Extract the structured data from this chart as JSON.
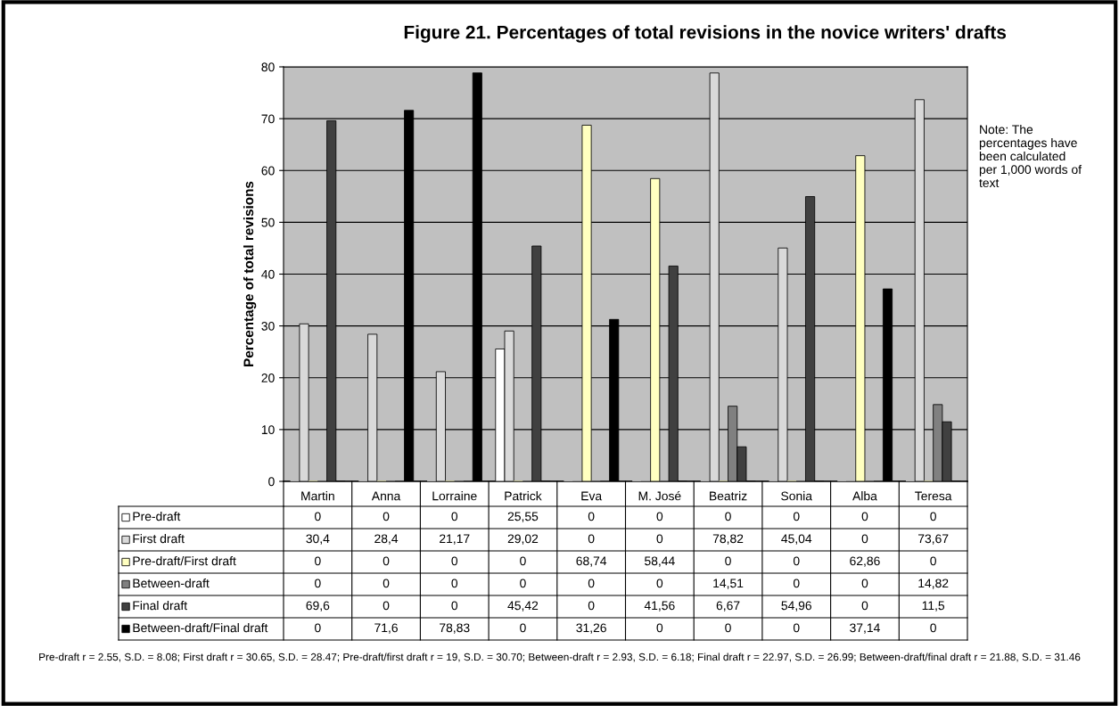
{
  "chart_data": {
    "type": "bar",
    "title": "Figure 21. Percentages of total revisions in the novice writers' drafts",
    "ylabel": "Percentage of total revisions",
    "categories": [
      "Martin",
      "Anna",
      "Lorraine",
      "Patrick",
      "Eva",
      "M. José",
      "Beatriz",
      "Sonia",
      "Alba",
      "Teresa"
    ],
    "series": [
      {
        "name": "Pre-draft",
        "color": "#ffffff",
        "values": [
          0,
          0,
          0,
          25.55,
          0,
          0,
          0,
          0,
          0,
          0
        ],
        "value_labels": [
          "0",
          "0",
          "0",
          "25,55",
          "0",
          "0",
          "0",
          "0",
          "0",
          "0"
        ]
      },
      {
        "name": "First draft",
        "color": "#d9d9d9",
        "values": [
          30.4,
          28.4,
          21.17,
          29.02,
          0,
          0,
          78.82,
          45.04,
          0,
          73.67
        ],
        "value_labels": [
          "30,4",
          "28,4",
          "21,17",
          "29,02",
          "0",
          "0",
          "78,82",
          "45,04",
          "0",
          "73,67"
        ]
      },
      {
        "name": "Pre-draft/First draft",
        "color": "#ffffc0",
        "values": [
          0,
          0,
          0,
          0,
          68.74,
          58.44,
          0,
          0,
          62.86,
          0
        ],
        "value_labels": [
          "0",
          "0",
          "0",
          "0",
          "68,74",
          "58,44",
          "0",
          "0",
          "62,86",
          "0"
        ]
      },
      {
        "name": "Between-draft",
        "color": "#808080",
        "values": [
          0,
          0,
          0,
          0,
          0,
          0,
          14.51,
          0,
          0,
          14.82
        ],
        "value_labels": [
          "0",
          "0",
          "0",
          "0",
          "0",
          "0",
          "14,51",
          "0",
          "0",
          "14,82"
        ]
      },
      {
        "name": "Final draft",
        "color": "#404040",
        "values": [
          69.6,
          0,
          0,
          45.42,
          0,
          41.56,
          6.67,
          54.96,
          0,
          11.5
        ],
        "value_labels": [
          "69,6",
          "0",
          "0",
          "45,42",
          "0",
          "41,56",
          "6,67",
          "54,96",
          "0",
          "11,5"
        ]
      },
      {
        "name": "Between-draft/Final draft",
        "color": "#000000",
        "values": [
          0,
          71.6,
          78.83,
          0,
          31.26,
          0,
          0,
          0,
          37.14,
          0
        ],
        "value_labels": [
          "0",
          "71,6",
          "78,83",
          "0",
          "31,26",
          "0",
          "0",
          "0",
          "37,14",
          "0"
        ]
      }
    ],
    "ylim": [
      0,
      80
    ],
    "yticks": [
      0,
      10,
      20,
      30,
      40,
      50,
      60,
      70,
      80
    ],
    "grid": "y",
    "legend": "bottom",
    "annotations": [
      "Note: The percentages have been calculated per 1,000 words of text",
      "Pre-draft r = 2.55, S.D. = 8.08; First draft r = 30.65, S.D. = 28.47; Pre-draft/first draft r = 19, S.D. = 30.70; Between-draft r = 2.93, S.D. = 6.18; Final draft r = 22.97, S.D. = 26.99; Between-draft/final draft r = 21.88, S.D. = 31.46"
    ]
  }
}
